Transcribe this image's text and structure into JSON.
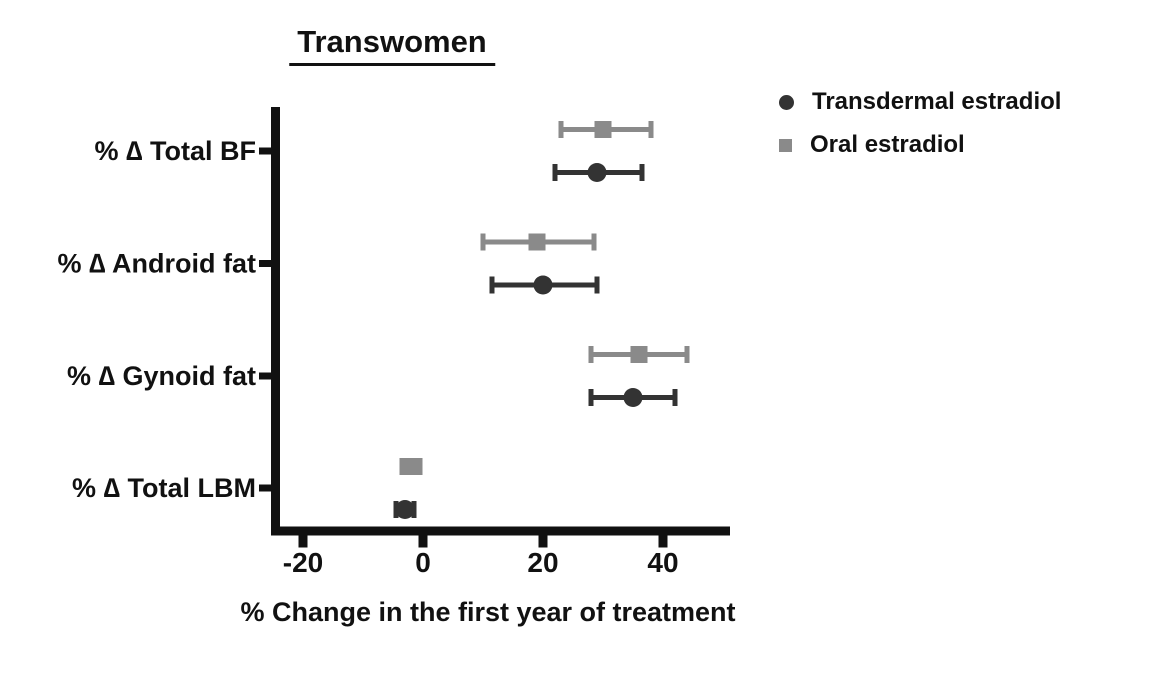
{
  "figure": {
    "title": "Transwomen"
  },
  "legend": [
    {
      "label": "Transdermal estradiol",
      "marker": "circle",
      "color": "#333333"
    },
    {
      "label": "Oral estradiol",
      "marker": "square",
      "color": "#8a8a8a"
    }
  ],
  "chart_data": {
    "type": "scatter",
    "subtype": "horizontal dot plot with error bars (forest-style)",
    "title": "Transwomen",
    "xlabel": "% Change in the first year of treatment",
    "categories": [
      "% ∆ Total BF",
      "% ∆ Android fat",
      "% ∆ Gynoid fat",
      "% ∆ Total LBM"
    ],
    "x_ticks": [
      "-20",
      "0",
      "20",
      "40"
    ],
    "x_tick_values": [
      -20,
      0,
      20,
      40
    ],
    "xlim": [
      -25.5,
      51
    ],
    "grid": false,
    "legend_position": "top-right",
    "row_order_within_category": [
      "Oral estradiol",
      "Transdermal estradiol"
    ],
    "series": [
      {
        "name": "Transdermal estradiol",
        "marker": "circle",
        "color": "#333333",
        "values": [
          29,
          20,
          35,
          -3
        ],
        "ci_low": [
          22,
          11.5,
          28,
          -4.5
        ],
        "ci_high": [
          36.5,
          29,
          42,
          -1.5
        ]
      },
      {
        "name": "Oral estradiol",
        "marker": "square",
        "color": "#8a8a8a",
        "values": [
          30,
          19,
          36,
          -2
        ],
        "ci_low": [
          23,
          10,
          28,
          -3.5
        ],
        "ci_high": [
          38,
          28.5,
          44,
          -0.5
        ]
      }
    ]
  },
  "colors": {
    "axis": "#111111",
    "text": "#111111",
    "background": "#ffffff"
  }
}
